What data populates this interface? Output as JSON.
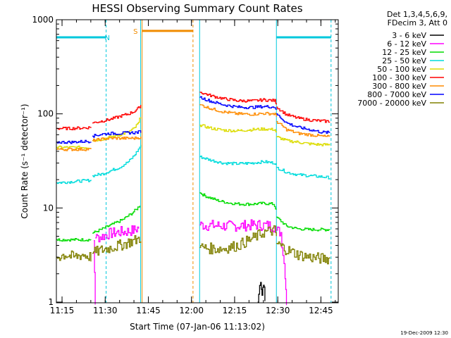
{
  "chart_data": {
    "type": "line",
    "title": "HESSI Observing Summary Count Rates",
    "xlabel": "Start Time (07-Jan-06 11:13:02)",
    "ylabel": "Count Rate (s⁻¹ detector⁻¹)",
    "y_scale": "log",
    "ylim": [
      1,
      1000
    ],
    "xlim_minutes": [
      0,
      98
    ],
    "x_ticks": [
      {
        "label": "11:15",
        "minute": 1.97
      },
      {
        "label": "11:30",
        "minute": 16.97
      },
      {
        "label": "11:45",
        "minute": 31.97
      },
      {
        "label": "12:00",
        "minute": 46.97
      },
      {
        "label": "12:15",
        "minute": 61.97
      },
      {
        "label": "12:30",
        "minute": 76.97
      },
      {
        "label": "12:45",
        "minute": 91.97
      }
    ],
    "y_ticks": [
      {
        "label": "1",
        "value": 1
      },
      {
        "label": "10",
        "value": 10
      },
      {
        "label": "100",
        "value": 100
      },
      {
        "label": "1000",
        "value": 1000
      }
    ],
    "legend_header": [
      "Det 1,3,4,5,6,9,",
      "FDecim 3, Att 0"
    ],
    "timestamp": "19-Dec-2009 12:30",
    "flags": [
      {
        "label": "N",
        "color": "#00c8dc",
        "level": 650,
        "segments": [
          [
            0,
            17.3
          ],
          [
            76.5,
            95.5
          ]
        ],
        "marker_minute": 17.7
      },
      {
        "label": "S",
        "color": "#f08c00",
        "level": 760,
        "segments": [
          [
            29.8,
            47.5
          ]
        ],
        "marker_minute": 27.5
      }
    ],
    "vlines": [
      {
        "minute": 17.3,
        "color": "#00c8dc",
        "dashed": true
      },
      {
        "minute": 29.3,
        "color": "#00c8dc",
        "dashed": false
      },
      {
        "minute": 29.8,
        "color": "#f08c00",
        "dashed": false
      },
      {
        "minute": 47.5,
        "color": "#f08c00",
        "dashed": true
      },
      {
        "minute": 49.8,
        "color": "#00c8dc",
        "dashed": false
      },
      {
        "minute": 76.5,
        "color": "#00c8dc",
        "dashed": false
      },
      {
        "minute": 95.5,
        "color": "#00c8dc",
        "dashed": true
      }
    ],
    "series": [
      {
        "name": "3 - 6 keV",
        "color": "#000000",
        "segments": [
          [
            [
              70,
              1.0
            ],
            [
              71,
              1.8
            ],
            [
              71.5,
              1.2
            ],
            [
              72,
              1.7
            ],
            [
              72.5,
              1.0
            ]
          ]
        ]
      },
      {
        "name": "6 - 12 keV",
        "color": "#ff00ff",
        "segments": [
          [
            [
              13,
              4.5
            ],
            [
              13.5,
              1.0
            ]
          ],
          [
            [
              13.5,
              4.8
            ],
            [
              16,
              5.0
            ],
            [
              18,
              5.3
            ],
            [
              21,
              5.5
            ],
            [
              24,
              5.6
            ],
            [
              27,
              5.8
            ],
            [
              28.6,
              6.2
            ]
          ],
          [
            [
              49.8,
              6.6
            ],
            [
              55,
              6.5
            ],
            [
              60,
              6.4
            ],
            [
              65,
              6.5
            ],
            [
              70,
              6.6
            ],
            [
              74,
              6.5
            ],
            [
              76,
              6.3
            ]
          ],
          [
            [
              76.5,
              5.8
            ],
            [
              78,
              5.5
            ],
            [
              79.5,
              2.0
            ],
            [
              80,
              1.0
            ]
          ]
        ]
      },
      {
        "name": "12 - 25 keV",
        "color": "#00dc00",
        "segments": [
          [
            [
              0,
              4.6
            ],
            [
              5,
              4.6
            ],
            [
              10,
              4.6
            ],
            [
              12,
              4.6
            ]
          ],
          [
            [
              12.5,
              5.4
            ],
            [
              16,
              6.0
            ],
            [
              19,
              6.6
            ],
            [
              23,
              7.5
            ],
            [
              26,
              8.7
            ],
            [
              28,
              9.8
            ],
            [
              29,
              10.8
            ]
          ],
          [
            [
              49.8,
              14.5
            ],
            [
              52,
              13.3
            ],
            [
              56,
              12.0
            ],
            [
              60,
              11.3
            ],
            [
              64,
              11.0
            ],
            [
              68,
              11.0
            ],
            [
              72,
              11.2
            ],
            [
              75.5,
              11.0
            ],
            [
              76.5,
              9.5
            ]
          ],
          [
            [
              76.5,
              8.0
            ],
            [
              80,
              6.4
            ],
            [
              84,
              6.0
            ],
            [
              88,
              5.9
            ],
            [
              92,
              5.9
            ],
            [
              95,
              5.9
            ]
          ]
        ]
      },
      {
        "name": "25 - 50 keV",
        "color": "#00dcdc",
        "segments": [
          [
            [
              0,
              18.5
            ],
            [
              5,
              19.0
            ],
            [
              10,
              19.5
            ],
            [
              12,
              19.8
            ]
          ],
          [
            [
              12.5,
              22.0
            ],
            [
              16,
              23.0
            ],
            [
              19,
              25.0
            ],
            [
              22,
              27.0
            ],
            [
              25,
              31.0
            ],
            [
              27,
              36.0
            ],
            [
              28.5,
              42.0
            ],
            [
              29.3,
              47.0
            ]
          ],
          [
            [
              49.8,
              35.0
            ],
            [
              54,
              32.0
            ],
            [
              58,
              30.0
            ],
            [
              63,
              29.5
            ],
            [
              68,
              30.0
            ],
            [
              72,
              31.0
            ],
            [
              76,
              30.0
            ],
            [
              76.5,
              28.0
            ]
          ],
          [
            [
              76.5,
              27.0
            ],
            [
              80,
              24.0
            ],
            [
              84,
              22.5
            ],
            [
              88,
              22.0
            ],
            [
              92,
              21.5
            ],
            [
              95,
              21.0
            ]
          ]
        ]
      },
      {
        "name": "50 - 100 keV",
        "color": "#dcdc00",
        "segments": [
          [
            [
              0,
              44.0
            ],
            [
              5,
              44.0
            ],
            [
              10,
              44.0
            ],
            [
              12,
              44.0
            ]
          ],
          [
            [
              12.5,
              52.0
            ],
            [
              16,
              54.0
            ],
            [
              19,
              57.0
            ],
            [
              22,
              60.0
            ],
            [
              25,
              64.0
            ],
            [
              27,
              70.0
            ],
            [
              28.5,
              80.0
            ],
            [
              29.3,
              95.0
            ]
          ],
          [
            [
              49.8,
              76.0
            ],
            [
              54,
              70.0
            ],
            [
              58,
              67.0
            ],
            [
              63,
              66.0
            ],
            [
              68,
              68.0
            ],
            [
              72,
              69.0
            ],
            [
              76,
              68.0
            ],
            [
              76.5,
              62.0
            ]
          ],
          [
            [
              76.5,
              57.0
            ],
            [
              80,
              52.0
            ],
            [
              84,
              50.0
            ],
            [
              88,
              48.0
            ],
            [
              92,
              47.0
            ],
            [
              95,
              47.0
            ]
          ]
        ]
      },
      {
        "name": "100 - 300 keV",
        "color": "#ff0000",
        "segments": [
          [
            [
              0,
              70.0
            ],
            [
              5,
              70.0
            ],
            [
              10,
              71.0
            ],
            [
              12,
              72.0
            ]
          ],
          [
            [
              12.5,
              80.0
            ],
            [
              16,
              84.0
            ],
            [
              19,
              88.0
            ],
            [
              22,
              94.0
            ],
            [
              25,
              100.0
            ],
            [
              27,
              106.0
            ],
            [
              28.5,
              115.0
            ],
            [
              29.3,
              125.0
            ]
          ],
          [
            [
              49.8,
              170.0
            ],
            [
              54,
              155.0
            ],
            [
              58,
              145.0
            ],
            [
              63,
              138.0
            ],
            [
              68,
              137.0
            ],
            [
              72,
              141.0
            ],
            [
              76,
              138.0
            ],
            [
              76.5,
              128.0
            ]
          ],
          [
            [
              76.5,
              118.0
            ],
            [
              80,
              98.0
            ],
            [
              84,
              90.0
            ],
            [
              88,
              86.0
            ],
            [
              92,
              84.0
            ],
            [
              95,
              83.0
            ]
          ]
        ]
      },
      {
        "name": "300 - 800 keV",
        "color": "#ff8c00",
        "segments": [
          [
            [
              0,
              42.0
            ],
            [
              5,
              42.0
            ],
            [
              10,
              42.0
            ],
            [
              12,
              42.0
            ]
          ],
          [
            [
              12.5,
              52.0
            ],
            [
              16,
              54.0
            ],
            [
              19,
              55.0
            ],
            [
              22,
              55.0
            ],
            [
              25,
              55.0
            ],
            [
              27,
              55.0
            ],
            [
              28.5,
              56.0
            ],
            [
              29.3,
              56.0
            ]
          ],
          [
            [
              49.8,
              125.0
            ],
            [
              54,
              113.0
            ],
            [
              58,
              105.0
            ],
            [
              63,
              100.0
            ],
            [
              68,
              99.0
            ],
            [
              72,
              101.0
            ],
            [
              76,
              100.0
            ],
            [
              76.5,
              93.0
            ]
          ],
          [
            [
              76.5,
              83.0
            ],
            [
              80,
              68.0
            ],
            [
              84,
              62.0
            ],
            [
              88,
              60.0
            ],
            [
              92,
              58.0
            ],
            [
              95,
              57.0
            ]
          ]
        ]
      },
      {
        "name": "800 - 7000 keV",
        "color": "#0000ff",
        "segments": [
          [
            [
              0,
              50.0
            ],
            [
              5,
              50.0
            ],
            [
              10,
              51.0
            ],
            [
              12,
              51.0
            ]
          ],
          [
            [
              12.5,
              58.0
            ],
            [
              16,
              61.0
            ],
            [
              19,
              62.0
            ],
            [
              22,
              62.0
            ],
            [
              25,
              63.0
            ],
            [
              27,
              63.0
            ],
            [
              28.5,
              64.0
            ],
            [
              29.3,
              65.0
            ]
          ],
          [
            [
              49.8,
              150.0
            ],
            [
              54,
              135.0
            ],
            [
              58,
              125.0
            ],
            [
              63,
              118.0
            ],
            [
              68,
              117.0
            ],
            [
              72,
              120.0
            ],
            [
              76,
              118.0
            ],
            [
              76.5,
              110.0
            ]
          ],
          [
            [
              76.5,
              100.0
            ],
            [
              80,
              80.0
            ],
            [
              84,
              72.0
            ],
            [
              88,
              68.0
            ],
            [
              92,
              64.0
            ],
            [
              95,
              63.0
            ]
          ]
        ]
      },
      {
        "name": "7000 - 20000 keV",
        "color": "#808000",
        "segments": [
          [
            [
              0,
              3.0
            ],
            [
              3,
              3.2
            ],
            [
              6,
              3.0
            ],
            [
              9,
              3.2
            ],
            [
              12,
              3.0
            ]
          ],
          [
            [
              12.5,
              3.3
            ],
            [
              16,
              3.6
            ],
            [
              19,
              3.8
            ],
            [
              22,
              4.0
            ],
            [
              25,
              4.3
            ],
            [
              28,
              4.6
            ],
            [
              29.3,
              4.9
            ]
          ],
          [
            [
              49.8,
              3.8
            ],
            [
              54,
              3.7
            ],
            [
              58,
              3.7
            ],
            [
              63,
              4.0
            ],
            [
              68,
              4.7
            ],
            [
              72,
              5.5
            ],
            [
              76,
              5.8
            ],
            [
              76.5,
              5.0
            ]
          ],
          [
            [
              76.5,
              4.2
            ],
            [
              80,
              3.6
            ],
            [
              84,
              3.2
            ],
            [
              88,
              3.0
            ],
            [
              92,
              2.9
            ],
            [
              95,
              2.9
            ]
          ]
        ]
      }
    ]
  }
}
